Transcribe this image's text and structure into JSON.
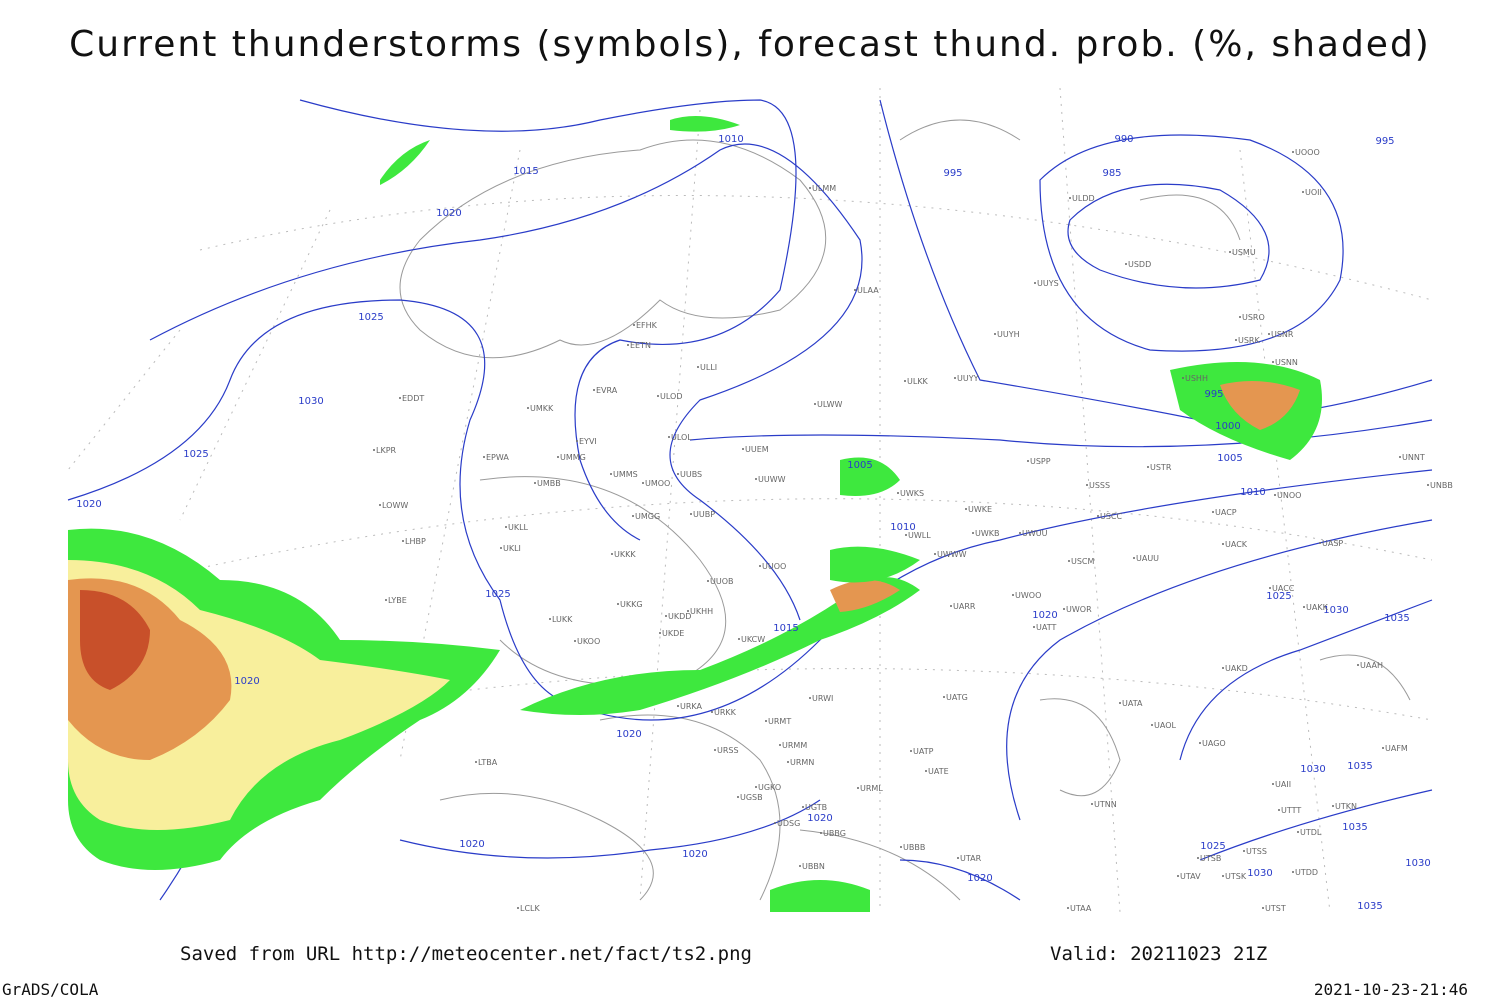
{
  "title": "Current thunderstorms (symbols), forecast thund. prob. (%, shaded)",
  "footer": {
    "source": "Saved from URL http://meteocenter.net/fact/ts2.png",
    "valid": "Valid: 20211023 21Z",
    "software": "GrADS/COLA",
    "timestamp": "2021-10-23-21:46"
  },
  "isobar_labels": [
    "1015",
    "1020",
    "1025",
    "1030",
    "1025",
    "1020",
    "1020",
    "1025",
    "1015",
    "1010",
    "995",
    "990",
    "985",
    "1005",
    "1010",
    "995",
    "1000",
    "1005",
    "1010",
    "1020",
    "1025",
    "1030",
    "1035",
    "1020",
    "1020",
    "1020",
    "1020",
    "1020",
    "1025",
    "1030",
    "1035",
    "1035",
    "1030",
    "1030",
    "1035",
    "995"
  ],
  "stations": [
    "UOOO",
    "UOII",
    "ULDD",
    "USDD",
    "USMU",
    "UUYS",
    "USRO",
    "USNR",
    "USRK",
    "USNN",
    "USHH",
    "UUYH",
    "ULAA",
    "ULMM",
    "EFHK",
    "EETN",
    "ULLI",
    "ULKK",
    "UUYY",
    "EVRA",
    "ULOD",
    "ULWW",
    "EDDT",
    "UMKK",
    "EYVI",
    "ULOL",
    "EPWA",
    "UMMG",
    "UUEM",
    "UMMS",
    "UMOO",
    "UUBS",
    "UUWW",
    "UMBB",
    "UWKS",
    "USSS",
    "USTR",
    "USPP",
    "UNNT",
    "UNBB",
    "UWKE",
    "UACP",
    "UNOO",
    "USCC",
    "LKPR",
    "LOWW",
    "UKLL",
    "UMGG",
    "UUBP",
    "UWLL",
    "UWKB",
    "UWUU",
    "LHBP",
    "UKLI",
    "UWWW",
    "UACK",
    "UASP",
    "UKKK",
    "USCM",
    "UAUU",
    "UUOO",
    "UUOB",
    "LYBE",
    "UWOO",
    "UACC",
    "UAKK",
    "UKHH",
    "UARR",
    "UWOR",
    "LUKK",
    "UKOO",
    "UKKG",
    "UKDD",
    "UKDE",
    "UATT",
    "UKCW",
    "URWI",
    "URKA",
    "URKK",
    "UATG",
    "URMT",
    "UAKD",
    "UAAH",
    "UATA",
    "UAOL",
    "URSS",
    "URMM",
    "URMN",
    "UATP",
    "UATE",
    "UAGO",
    "UAFM",
    "LTBA",
    "UGKO",
    "URML",
    "UGSB",
    "UGTB",
    "UTNN",
    "UTKN",
    "UTTT",
    "UTDL",
    "UDSG",
    "UBBG",
    "UBBB",
    "UTAR",
    "UTSS",
    "UTSB",
    "UTDD",
    "UTAV",
    "UTSK",
    "UBBN",
    "LCLK",
    "UTAA",
    "UTST",
    "UAII"
  ]
}
